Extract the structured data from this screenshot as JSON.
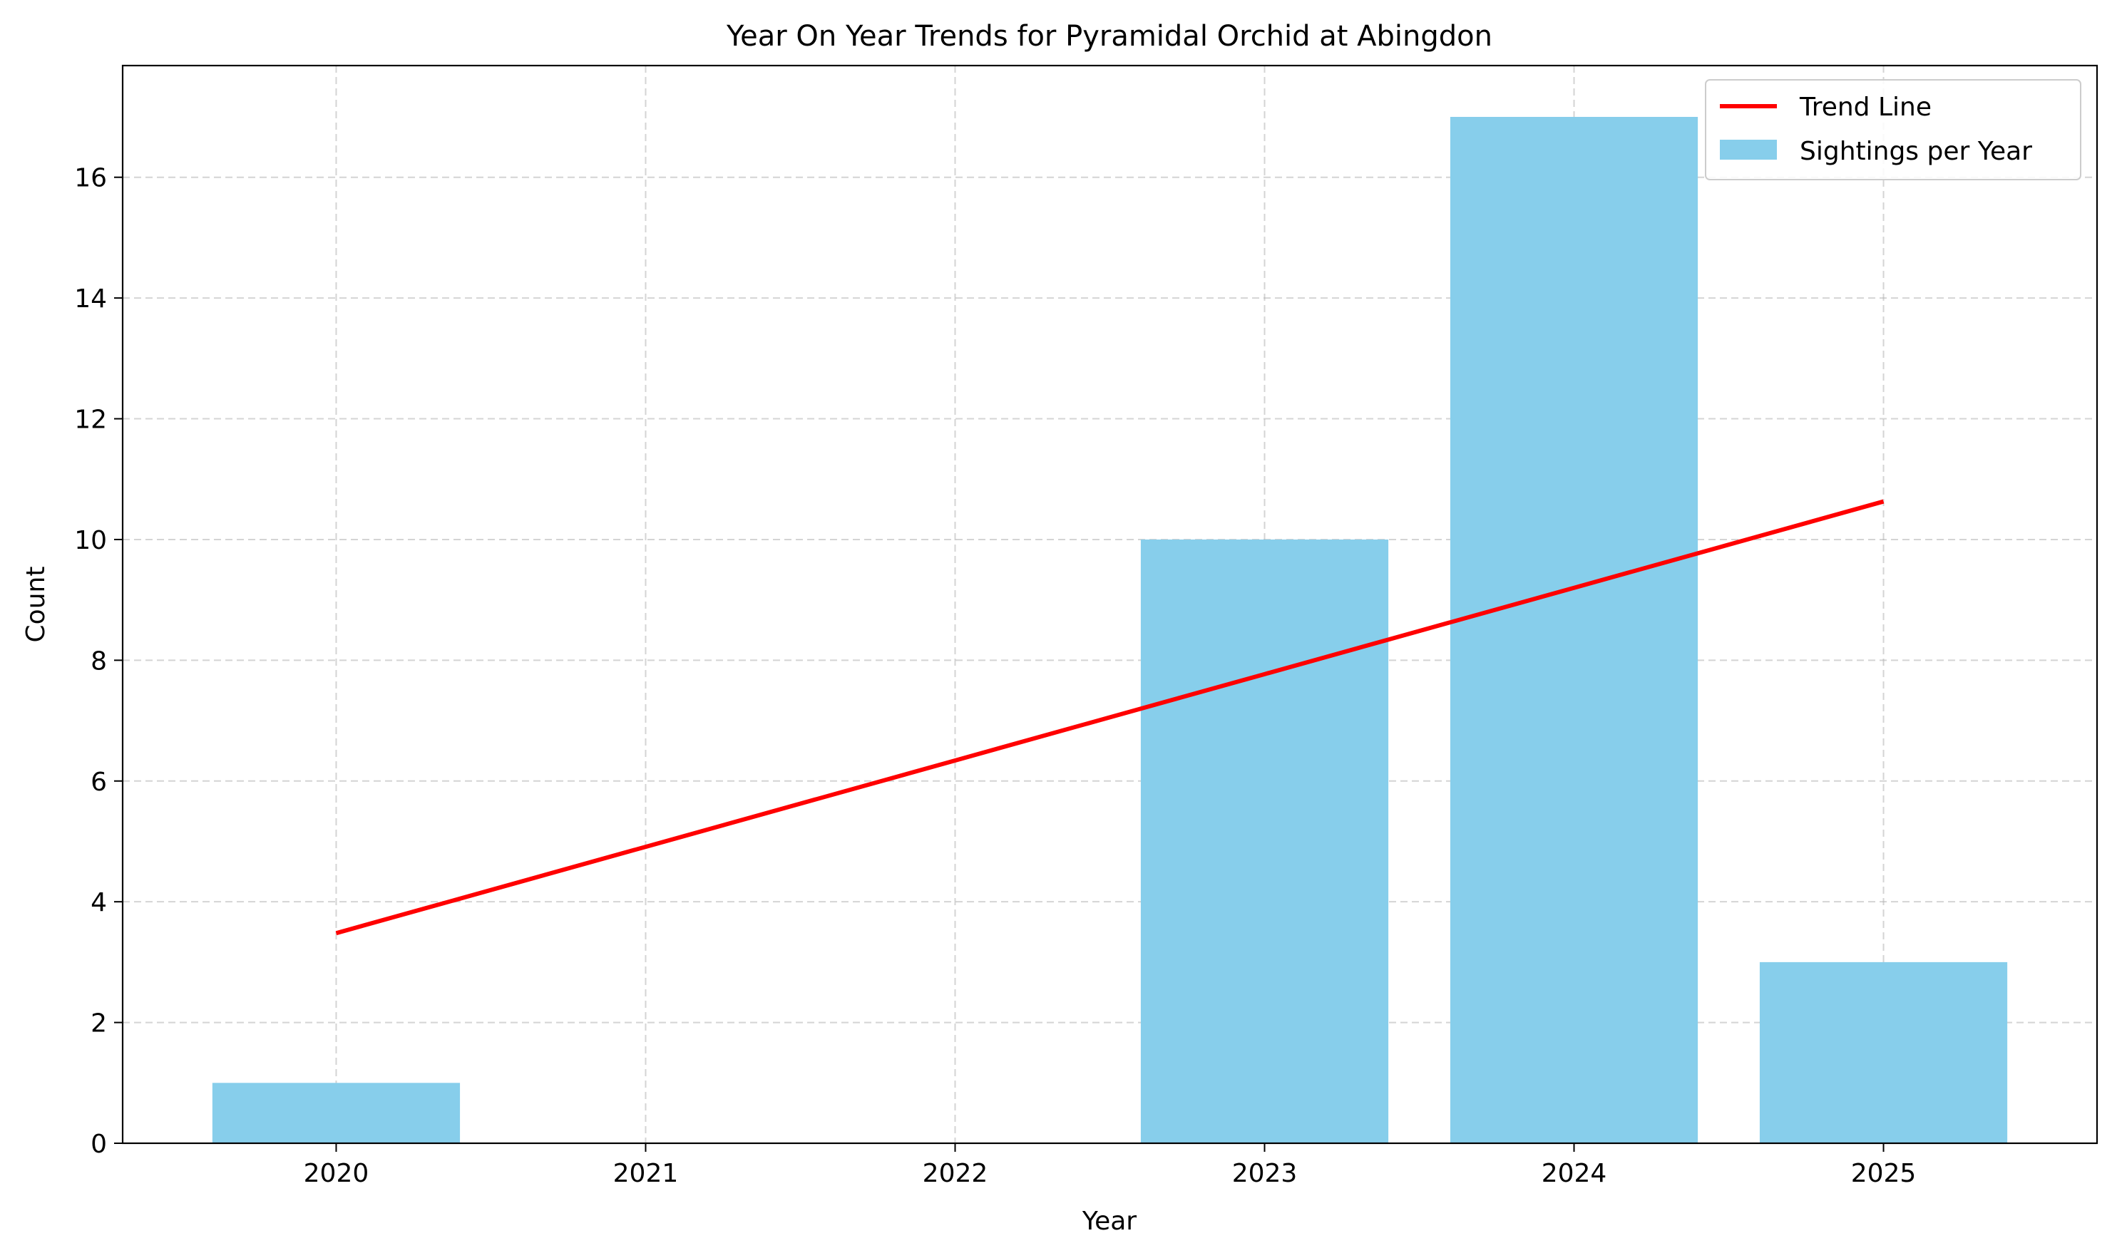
{
  "chart_data": {
    "type": "bar",
    "title": "Year On Year Trends for Pyramidal Orchid at Abingdon",
    "xlabel": "Year",
    "ylabel": "Count",
    "categories": [
      "2020",
      "2021",
      "2022",
      "2023",
      "2024",
      "2025"
    ],
    "x": [
      2020,
      2021,
      2022,
      2023,
      2024,
      2025
    ],
    "xlim": [
      2019.31,
      2025.69
    ],
    "ylim": [
      0,
      17.85
    ],
    "yticks": [
      0,
      2,
      4,
      6,
      8,
      10,
      12,
      14,
      16
    ],
    "grid": true,
    "legend_position": "top-right",
    "series": [
      {
        "name": "Sightings per Year",
        "kind": "bar",
        "color": "#87ceeb",
        "values": [
          1,
          0,
          0,
          10,
          17,
          3
        ]
      },
      {
        "name": "Trend Line",
        "kind": "line",
        "color": "#ff0000",
        "values": [
          3.48,
          4.91,
          6.34,
          7.77,
          9.2,
          10.63
        ]
      }
    ]
  }
}
